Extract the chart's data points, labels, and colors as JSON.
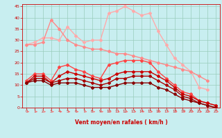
{
  "x": [
    0,
    1,
    2,
    3,
    4,
    5,
    6,
    7,
    8,
    9,
    10,
    11,
    12,
    13,
    14,
    15,
    16,
    17,
    18,
    19,
    20,
    21,
    22,
    23
  ],
  "series": [
    {
      "color": "#ffaaaa",
      "linewidth": 1.0,
      "marker": "D",
      "markersize": 2.0,
      "y": [
        28,
        29,
        31,
        31,
        30,
        36,
        32,
        29,
        30,
        30,
        42,
        43,
        45,
        43,
        41,
        42,
        34,
        28,
        22,
        19,
        16,
        9,
        8,
        null
      ]
    },
    {
      "color": "#ff8888",
      "linewidth": 1.0,
      "marker": "D",
      "markersize": 2.0,
      "y": [
        28,
        28,
        29,
        39,
        35,
        30,
        28,
        27,
        26,
        26,
        25,
        24,
        24,
        23,
        22,
        21,
        20,
        19,
        18,
        17,
        16,
        14,
        12,
        null
      ]
    },
    {
      "color": "#ff4444",
      "linewidth": 1.0,
      "marker": "D",
      "markersize": 2.0,
      "y": [
        12,
        15,
        15,
        12,
        18,
        19,
        17,
        16,
        14,
        13,
        19,
        20,
        21,
        21,
        21,
        20,
        16,
        13,
        10,
        7,
        6,
        3,
        2,
        1
      ]
    },
    {
      "color": "#cc0000",
      "linewidth": 1.0,
      "marker": "D",
      "markersize": 2.0,
      "y": [
        11,
        14,
        14,
        11,
        14,
        16,
        15,
        14,
        13,
        12,
        13,
        15,
        16,
        16,
        16,
        16,
        14,
        12,
        9,
        6,
        5,
        3,
        2,
        1
      ]
    },
    {
      "color": "#aa0000",
      "linewidth": 1.0,
      "marker": "D",
      "markersize": 2.0,
      "y": [
        11,
        13,
        13,
        11,
        12,
        13,
        13,
        12,
        11,
        10,
        11,
        13,
        13,
        14,
        14,
        14,
        12,
        10,
        8,
        5,
        4,
        2,
        1,
        0
      ]
    },
    {
      "color": "#880000",
      "linewidth": 1.0,
      "marker": "D",
      "markersize": 2.0,
      "y": [
        11,
        12,
        12,
        10,
        11,
        11,
        11,
        10,
        9,
        9,
        9,
        10,
        11,
        11,
        11,
        11,
        9,
        8,
        6,
        4,
        3,
        2,
        1,
        0
      ]
    }
  ],
  "arrow_color": "#ff6666",
  "xlim": [
    -0.5,
    23.5
  ],
  "ylim": [
    0,
    46
  ],
  "yticks": [
    0,
    5,
    10,
    15,
    20,
    25,
    30,
    35,
    40,
    45
  ],
  "xticks": [
    0,
    1,
    2,
    3,
    4,
    5,
    6,
    7,
    8,
    9,
    10,
    11,
    12,
    13,
    14,
    15,
    16,
    17,
    18,
    19,
    20,
    21,
    22,
    23
  ],
  "xlabel": "Vent moyen/en rafales ( km/h )",
  "bgcolor": "#c8eef0",
  "grid_color": "#99ccbb",
  "label_color": "#cc0000",
  "tick_color": "#cc0000",
  "spine_color": "#cc0000"
}
